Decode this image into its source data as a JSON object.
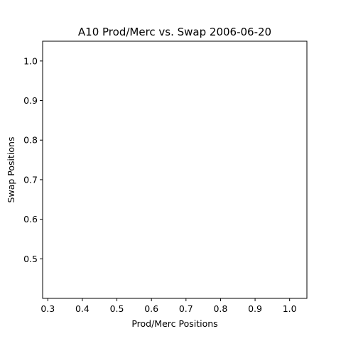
{
  "chart_data": {
    "type": "scatter",
    "title": "A10 Prod/Merc vs. Swap 2006-06-20",
    "xlabel": "Prod/Merc Positions",
    "ylabel": "Swap Positions",
    "xlim": [
      0.285,
      1.05
    ],
    "ylim": [
      0.4,
      1.05
    ],
    "xticks": [
      0.3,
      0.4,
      0.5,
      0.6,
      0.7,
      0.8,
      0.9,
      1.0
    ],
    "xtick_labels": [
      "0.3",
      "0.4",
      "0.5",
      "0.6",
      "0.7",
      "0.8",
      "0.9",
      "1.0"
    ],
    "yticks": [
      0.5,
      0.6,
      0.7,
      0.8,
      0.9,
      1.0
    ],
    "ytick_labels": [
      "0.5",
      "0.6",
      "0.7",
      "0.8",
      "0.9",
      "1.0"
    ],
    "x": [],
    "y": [],
    "grid": false,
    "legend": "none"
  }
}
